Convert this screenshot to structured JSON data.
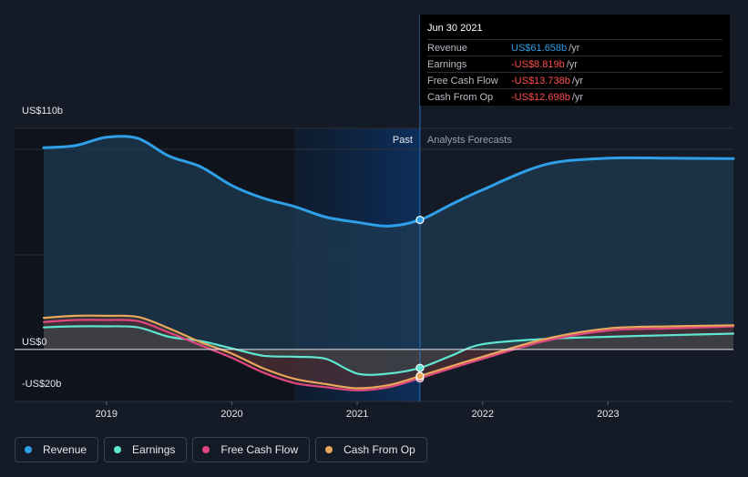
{
  "tooltip": {
    "date": "Jun 30 2021",
    "rows": [
      {
        "name": "Revenue",
        "value": "US$61.658b",
        "unit": "/yr",
        "color": "#2f9fe8"
      },
      {
        "name": "Earnings",
        "value": "-US$8.819b",
        "unit": "/yr",
        "color": "#ff4d4d"
      },
      {
        "name": "Free Cash Flow",
        "value": "-US$13.738b",
        "unit": "/yr",
        "color": "#ff4d4d"
      },
      {
        "name": "Cash From Op",
        "value": "-US$12.698b",
        "unit": "/yr",
        "color": "#ff4d4d"
      }
    ]
  },
  "regions": {
    "past": "Past",
    "forecast": "Analysts Forecasts"
  },
  "legend": [
    {
      "name": "Revenue",
      "color": "#2f9fe8"
    },
    {
      "name": "Earnings",
      "color": "#5ee6d1"
    },
    {
      "name": "Free Cash Flow",
      "color": "#e0477f"
    },
    {
      "name": "Cash From Op",
      "color": "#e8a75b"
    }
  ],
  "chart_data": {
    "type": "area",
    "ylim": [
      -20,
      110
    ],
    "y_tick_labels": [
      {
        "value": 110,
        "label": "US$110b"
      },
      {
        "value": 0,
        "label": "US$0"
      },
      {
        "value": -20,
        "label": "-US$20b"
      }
    ],
    "xlim": [
      2018.5,
      2024.0
    ],
    "x_ticks": [
      2019,
      2020,
      2021,
      2022,
      2023
    ],
    "x_tick_labels": [
      "2019",
      "2020",
      "2021",
      "2022",
      "2023"
    ],
    "highlight_range": [
      2020.5,
      2021.5
    ],
    "past_end": 2021.5,
    "series": [
      {
        "name": "Revenue",
        "color": "#2f9fe8",
        "fill": "#1e3a52",
        "x": [
          2018.5,
          2018.75,
          2019.0,
          2019.25,
          2019.5,
          2019.75,
          2020.0,
          2020.25,
          2020.5,
          2020.75,
          2021.0,
          2021.25,
          2021.5,
          2021.75,
          2022.0,
          2022.5,
          2023.0,
          2023.5,
          2024.0
        ],
        "y": [
          96,
          97,
          101,
          100.5,
          92,
          87,
          78,
          72,
          68,
          63,
          60.5,
          58.7,
          61.658,
          69,
          76,
          88,
          91,
          91,
          90.8
        ]
      },
      {
        "name": "Earnings",
        "color": "#5ee6d1",
        "fill": "#3a4a4c",
        "x": [
          2018.5,
          2018.75,
          2019.0,
          2019.25,
          2019.5,
          2019.75,
          2020.0,
          2020.25,
          2020.5,
          2020.75,
          2021.0,
          2021.25,
          2021.5,
          2021.75,
          2022.0,
          2022.5,
          2023.0,
          2023.5,
          2024.0
        ],
        "y": [
          10.5,
          11,
          11,
          10.5,
          6,
          4,
          0.5,
          -3,
          -3.5,
          -4.5,
          -11.5,
          -11.5,
          -8.819,
          -3,
          2.5,
          5,
          6,
          6.8,
          7.5
        ]
      },
      {
        "name": "Free Cash Flow",
        "color": "#e0477f",
        "fill": "#4a2a3a",
        "x": [
          2018.5,
          2018.75,
          2019.0,
          2019.25,
          2019.5,
          2019.75,
          2020.0,
          2020.25,
          2020.5,
          2020.75,
          2021.0,
          2021.25,
          2021.5,
          2021.75,
          2022.0,
          2022.5,
          2023.0,
          2023.5,
          2024.0
        ],
        "y": [
          13,
          14,
          14,
          13.5,
          8,
          2,
          -4,
          -11,
          -16,
          -18,
          -19.5,
          -18,
          -13.738,
          -9,
          -4.5,
          4,
          9,
          10,
          11
        ]
      },
      {
        "name": "Cash From Op",
        "color": "#e8a75b",
        "fill": "#4a3a2a",
        "x": [
          2018.5,
          2018.75,
          2019.0,
          2019.25,
          2019.5,
          2019.75,
          2020.0,
          2020.25,
          2020.5,
          2020.75,
          2021.0,
          2021.25,
          2021.5,
          2021.75,
          2022.0,
          2022.5,
          2023.0,
          2023.5,
          2024.0
        ],
        "y": [
          15,
          16,
          16,
          15.5,
          10,
          3.5,
          -2,
          -9,
          -14,
          -16.5,
          -18.5,
          -17,
          -12.698,
          -8,
          -3.5,
          5,
          10,
          11,
          11.5
        ]
      }
    ]
  }
}
